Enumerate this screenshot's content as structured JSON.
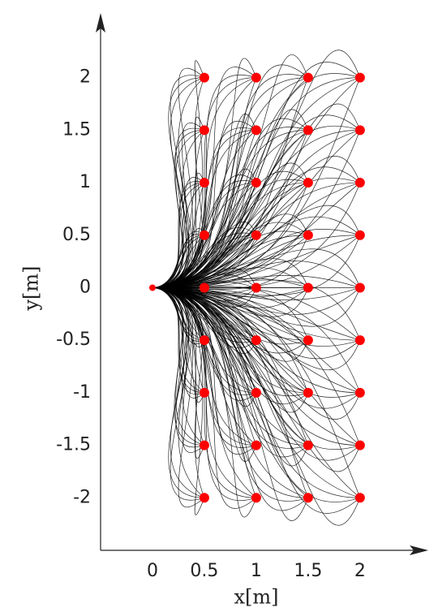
{
  "chart_data": {
    "type": "scatter",
    "x_label": "x[m]",
    "y_label": "y[m]",
    "x": [
      0,
      0.5,
      0.5,
      0.5,
      0.5,
      0.5,
      0.5,
      0.5,
      0.5,
      0.5,
      1,
      1,
      1,
      1,
      1,
      1,
      1,
      1,
      1,
      1.5,
      1.5,
      1.5,
      1.5,
      1.5,
      1.5,
      1.5,
      1.5,
      1.5,
      2,
      2,
      2,
      2,
      2,
      2,
      2,
      2,
      2
    ],
    "values": [
      0,
      -2,
      -1.5,
      -1,
      -0.5,
      0,
      0.5,
      1,
      1.5,
      2,
      -2,
      -1.5,
      -1,
      -0.5,
      0,
      0.5,
      1,
      1.5,
      2,
      -2,
      -1.5,
      -1,
      -0.5,
      0,
      0.5,
      1,
      1.5,
      2,
      -2,
      -1.5,
      -1,
      -0.5,
      0,
      0.5,
      1,
      1.5,
      2
    ],
    "color": "#ff0000",
    "xlim": [
      -0.5,
      2.65
    ],
    "ylim": [
      -2.5,
      2.6
    ],
    "xticks": [
      0,
      0.5,
      1,
      1.5,
      2
    ],
    "yticks": [
      -2,
      -1.5,
      -1,
      -0.5,
      0,
      0.5,
      1,
      1.5,
      2
    ]
  }
}
